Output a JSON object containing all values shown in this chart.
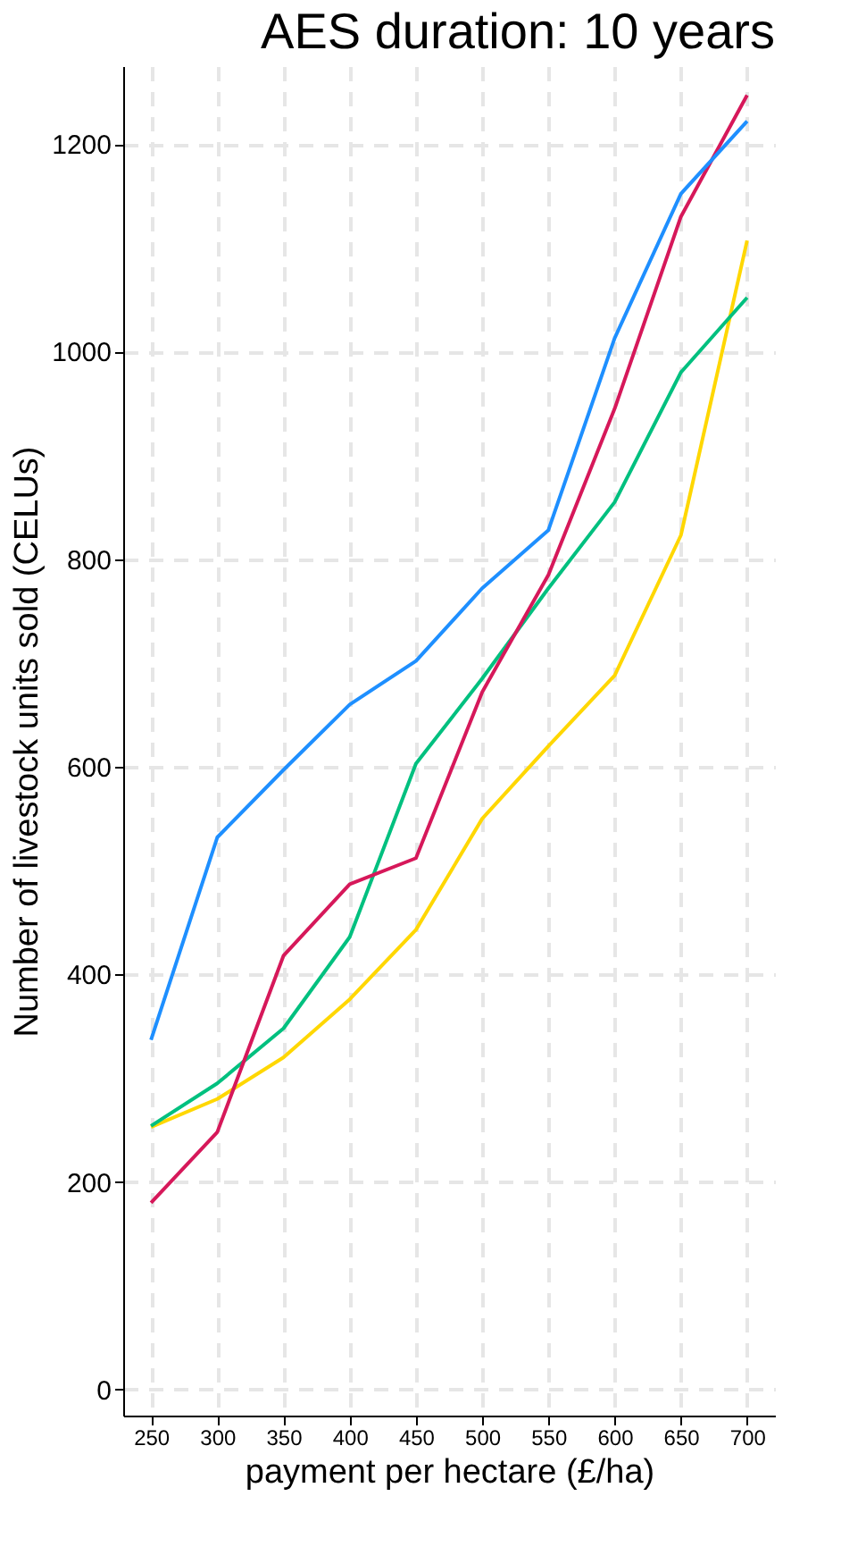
{
  "chart_data": {
    "type": "line",
    "title": "AES duration: 10 years",
    "xlabel": "payment per hectare (£/ha)",
    "ylabel": "Number of livestock units sold (CELUs)",
    "x": [
      250,
      300,
      350,
      400,
      450,
      500,
      550,
      600,
      650,
      700
    ],
    "series": [
      {
        "color": "#ffd700",
        "values": [
          253,
          280,
          320,
          376,
          443,
          550,
          620,
          688,
          823,
          1107
        ]
      },
      {
        "color": "#00c07f",
        "values": [
          254,
          295,
          348,
          436,
          603,
          685,
          772,
          855,
          980,
          1052
        ]
      },
      {
        "color": "#d6185a",
        "values": [
          180,
          248,
          418,
          487,
          512,
          672,
          785,
          945,
          1130,
          1247
        ]
      },
      {
        "color": "#1e8fff",
        "values": [
          337,
          532,
          597,
          660,
          702,
          772,
          828,
          1013,
          1152,
          1222
        ]
      }
    ],
    "xlim": [
      229,
      721
    ],
    "xticks": [
      250,
      300,
      350,
      400,
      450,
      500,
      550,
      600,
      650,
      700
    ],
    "ylim": [
      -25,
      1275
    ],
    "yticks": [
      0,
      200,
      400,
      600,
      800,
      1000,
      1200
    ],
    "grid": true,
    "legend": false,
    "marker": "none",
    "line_style": "solid"
  }
}
